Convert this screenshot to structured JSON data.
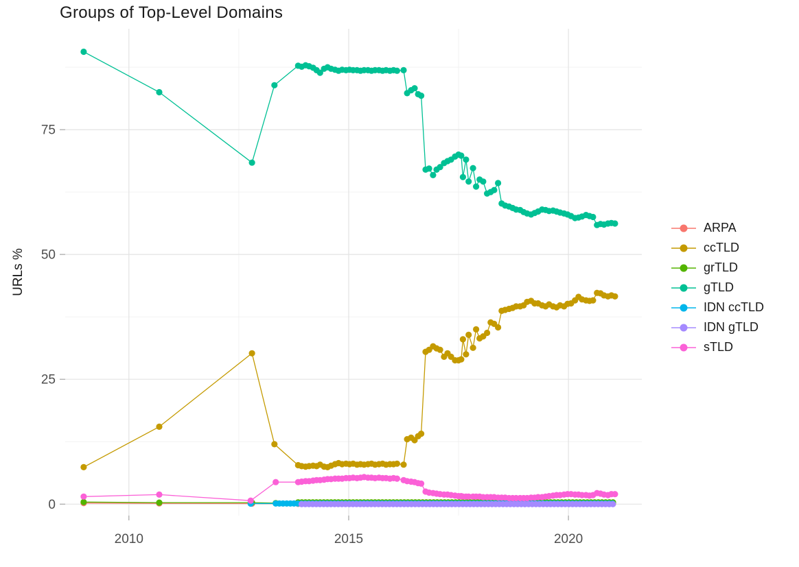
{
  "page_title": "Groups of Top-Level Domains",
  "chart_data": {
    "type": "line",
    "markers": true,
    "title": "Groups of Top-Level Domains",
    "xlabel": "",
    "ylabel": "URLs %",
    "x_unit": "year",
    "xlim": [
      2008.55,
      2021.67
    ],
    "ylim": [
      -2.3,
      95.2
    ],
    "grid": "major+minor",
    "legend_position": "right",
    "x_ticks": {
      "major": [
        2010,
        2015,
        2020
      ],
      "labels": [
        "2010",
        "2015",
        "2020"
      ],
      "minor": [
        2012.5,
        2017.5
      ]
    },
    "y_ticks": {
      "major": [
        0,
        25,
        50,
        75
      ],
      "labels": [
        "0",
        "25",
        "50",
        "75"
      ],
      "minor": [
        12.5,
        37.5,
        62.5,
        87.5
      ]
    },
    "dense_t": [
      2013.85,
      2013.93,
      2014.02,
      2014.1,
      2014.19,
      2014.27,
      2014.35,
      2014.44,
      2014.52,
      2014.6,
      2014.69,
      2014.77,
      2014.85,
      2014.94,
      2015.02,
      2015.1,
      2015.19,
      2015.27,
      2015.35,
      2015.44,
      2015.52,
      2015.6,
      2015.69,
      2015.77,
      2015.85,
      2015.94,
      2016.02,
      2016.1,
      2016.25,
      2016.33,
      2016.42,
      2016.5,
      2016.58,
      2016.65,
      2016.75,
      2016.83,
      2016.92,
      2017.0,
      2017.08,
      2017.17,
      2017.25,
      2017.33,
      2017.42,
      2017.5,
      2017.56,
      2017.6,
      2017.67,
      2017.73,
      2017.83,
      2017.9,
      2017.98,
      2018.06,
      2018.15,
      2018.23,
      2018.31,
      2018.4,
      2018.48,
      2018.56,
      2018.65,
      2018.73,
      2018.81,
      2018.9,
      2018.98,
      2019.06,
      2019.15,
      2019.23,
      2019.31,
      2019.4,
      2019.48,
      2019.56,
      2019.65,
      2019.73,
      2019.81,
      2019.9,
      2019.98,
      2020.06,
      2020.15,
      2020.23,
      2020.31,
      2020.4,
      2020.48,
      2020.56,
      2020.65,
      2020.73,
      2020.81,
      2020.9,
      2020.98,
      2021.06
    ],
    "series": [
      {
        "name": "ARPA",
        "color": "#F8766D",
        "sparse": [
          [
            2008.97,
            0.2
          ],
          [
            2010.69,
            0.15
          ],
          [
            2012.8,
            0.1
          ]
        ],
        "dense_v": null,
        "runs": [
          {
            "from": 2013.85,
            "to": 2021.06,
            "step": 0.0833,
            "value": 0.05
          }
        ]
      },
      {
        "name": "ccTLD",
        "color": "#C49A00",
        "sparse": [
          [
            2008.97,
            7.4
          ],
          [
            2010.69,
            15.5
          ],
          [
            2012.8,
            30.2
          ],
          [
            2013.31,
            12.0
          ]
        ],
        "dense_v": [
          7.8,
          7.6,
          7.5,
          7.6,
          7.7,
          7.6,
          7.9,
          7.5,
          7.4,
          7.7,
          8.0,
          8.2,
          8.0,
          8.1,
          8.0,
          8.1,
          7.9,
          8.0,
          7.9,
          8.0,
          8.1,
          7.9,
          8.0,
          8.1,
          7.9,
          8.0,
          8.0,
          8.1,
          7.9,
          13.0,
          13.3,
          12.8,
          13.6,
          14.1,
          30.5,
          30.9,
          31.6,
          31.2,
          30.9,
          29.5,
          30.2,
          29.5,
          28.8,
          28.8,
          29.0,
          33.0,
          30.0,
          33.9,
          31.3,
          35.0,
          33.2,
          33.6,
          34.3,
          36.4,
          36.1,
          35.4,
          38.7,
          38.9,
          39.1,
          39.3,
          39.6,
          39.6,
          39.8,
          40.5,
          40.7,
          40.2,
          40.2,
          39.8,
          39.6,
          40.0,
          39.6,
          39.4,
          39.8,
          39.6,
          40.1,
          40.2,
          40.8,
          41.5,
          41.0,
          40.8,
          40.7,
          40.8,
          42.3,
          42.2,
          41.8,
          41.6,
          41.8,
          41.6
        ],
        "runs": []
      },
      {
        "name": "grTLD",
        "color": "#53B400",
        "sparse": [
          [
            2008.97,
            0.4
          ],
          [
            2010.69,
            0.3
          ],
          [
            2012.8,
            0.3
          ],
          [
            2013.34,
            0.2
          ]
        ],
        "dense_v": null,
        "runs": [
          {
            "from": 2013.85,
            "to": 2021.06,
            "step": 0.0833,
            "value": 0.35
          }
        ]
      },
      {
        "name": "gTLD",
        "color": "#00C094",
        "sparse": [
          [
            2008.97,
            90.6
          ],
          [
            2010.69,
            82.5
          ],
          [
            2012.8,
            68.4
          ],
          [
            2013.31,
            83.9
          ]
        ],
        "dense_v": [
          87.8,
          87.6,
          87.9,
          87.7,
          87.4,
          86.9,
          86.4,
          87.2,
          87.5,
          87.2,
          87.0,
          86.8,
          87.0,
          86.9,
          87.0,
          86.9,
          86.9,
          86.8,
          86.9,
          86.9,
          86.8,
          86.9,
          86.9,
          86.8,
          86.9,
          86.8,
          86.9,
          86.8,
          86.9,
          82.3,
          82.9,
          83.3,
          82.1,
          81.8,
          67.0,
          67.2,
          65.9,
          67.0,
          67.5,
          68.3,
          68.7,
          69.0,
          69.6,
          70.0,
          69.8,
          65.5,
          69.0,
          64.6,
          67.3,
          63.6,
          65.0,
          64.6,
          62.2,
          62.5,
          62.9,
          64.3,
          60.2,
          59.8,
          59.6,
          59.3,
          59.0,
          58.9,
          58.5,
          58.2,
          58.0,
          58.3,
          58.6,
          59.0,
          58.9,
          58.7,
          58.8,
          58.6,
          58.4,
          58.2,
          58.0,
          57.7,
          57.3,
          57.4,
          57.6,
          57.9,
          57.7,
          57.5,
          55.9,
          56.1,
          56.0,
          56.2,
          56.3,
          56.2
        ],
        "runs": []
      },
      {
        "name": "IDN ccTLD",
        "color": "#00B6EB",
        "sparse": [
          [
            2012.77,
            0.1
          ]
        ],
        "dense_v": null,
        "runs": [
          {
            "from": 2013.34,
            "to": 2021.06,
            "step": 0.0833,
            "value": 0.12
          }
        ]
      },
      {
        "name": "IDN gTLD",
        "color": "#A58AFF",
        "sparse": [],
        "dense_v": null,
        "runs": [
          {
            "from": 2013.93,
            "to": 2021.06,
            "step": 0.0833,
            "value": 0.0
          }
        ]
      },
      {
        "name": "sTLD",
        "color": "#FB61D7",
        "sparse": [
          [
            2008.97,
            1.5
          ],
          [
            2010.69,
            1.9
          ],
          [
            2012.77,
            0.7
          ],
          [
            2013.34,
            4.4
          ]
        ],
        "dense_v": [
          4.4,
          4.5,
          4.6,
          4.6,
          4.7,
          4.8,
          4.8,
          4.9,
          5.0,
          5.0,
          5.1,
          5.1,
          5.1,
          5.2,
          5.2,
          5.3,
          5.2,
          5.3,
          5.4,
          5.3,
          5.3,
          5.2,
          5.3,
          5.2,
          5.2,
          5.1,
          5.2,
          5.1,
          4.8,
          4.6,
          4.5,
          4.4,
          4.2,
          4.1,
          2.5,
          2.3,
          2.2,
          2.1,
          2.0,
          1.9,
          1.9,
          1.8,
          1.7,
          1.6,
          1.6,
          1.5,
          1.5,
          1.5,
          1.5,
          1.5,
          1.5,
          1.4,
          1.4,
          1.4,
          1.4,
          1.3,
          1.3,
          1.3,
          1.2,
          1.2,
          1.2,
          1.2,
          1.2,
          1.2,
          1.3,
          1.3,
          1.4,
          1.4,
          1.5,
          1.6,
          1.7,
          1.8,
          1.8,
          1.9,
          2.0,
          2.0,
          1.9,
          1.9,
          1.8,
          1.8,
          1.7,
          1.8,
          2.2,
          2.1,
          1.9,
          1.8,
          2.0,
          2.0
        ],
        "runs": []
      }
    ],
    "style": {
      "background": "#ffffff",
      "grid_major_color": "#E3E3E3",
      "grid_minor_color": "#F0F0F0",
      "tick_mark_color": "#9C9C9C",
      "tick_label_color": "#4e4e4e",
      "point_radius": 4.6,
      "line_width": 1.3
    }
  }
}
